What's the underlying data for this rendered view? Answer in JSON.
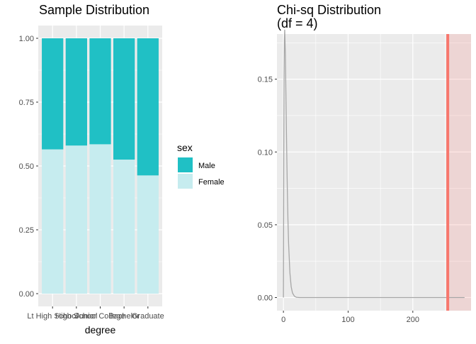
{
  "chart_data": [
    {
      "type": "bar",
      "title": "Sample Distribution",
      "xlabel": "degree",
      "ylabel": "",
      "stacked": "fill",
      "categories": [
        "Lt High School",
        "High School",
        "Junior College",
        "Bachelor",
        "Graduate"
      ],
      "series": [
        {
          "name": "Female",
          "color": "#c6ecef",
          "values": [
            0.565,
            0.58,
            0.585,
            0.525,
            0.463
          ]
        },
        {
          "name": "Male",
          "color": "#20c0c5",
          "values": [
            0.435,
            0.42,
            0.415,
            0.475,
            0.537
          ]
        }
      ],
      "ylim": [
        0,
        1
      ],
      "y_ticks": [
        "0.00",
        "0.25",
        "0.50",
        "0.75",
        "1.00"
      ],
      "legend": {
        "title": "sex",
        "position": "right",
        "items": [
          "Male",
          "Female"
        ]
      },
      "grid": true
    },
    {
      "type": "line",
      "title_lines": [
        "Chi-sq Distribution",
        "(df = 4)"
      ],
      "xlabel": "",
      "ylabel": "",
      "df": 4,
      "xlim": [
        -10,
        290
      ],
      "ylim": [
        0,
        0.181
      ],
      "x_ticks": [
        0,
        100,
        200
      ],
      "y_ticks": [
        "0.00",
        "0.05",
        "0.10",
        "0.15"
      ],
      "curve": {
        "x": [
          0,
          0.5,
          1,
          1.5,
          2,
          3,
          4,
          5,
          6,
          7,
          8,
          10,
          12,
          14,
          17,
          20,
          25,
          30,
          40,
          50,
          60,
          100,
          150,
          200,
          250,
          280
        ],
        "y": [
          0,
          0.097,
          0.152,
          0.177,
          0.184,
          0.167,
          0.135,
          0.103,
          0.075,
          0.053,
          0.037,
          0.017,
          0.0074,
          0.0032,
          0.0009,
          0.0002,
          0,
          0,
          0,
          0,
          0,
          0,
          0,
          0,
          0,
          0
        ],
        "color": "#a6a6a6"
      },
      "observed": {
        "value": 254,
        "color": "#f8766d"
      },
      "shade_from": 254,
      "grid": true
    }
  ]
}
